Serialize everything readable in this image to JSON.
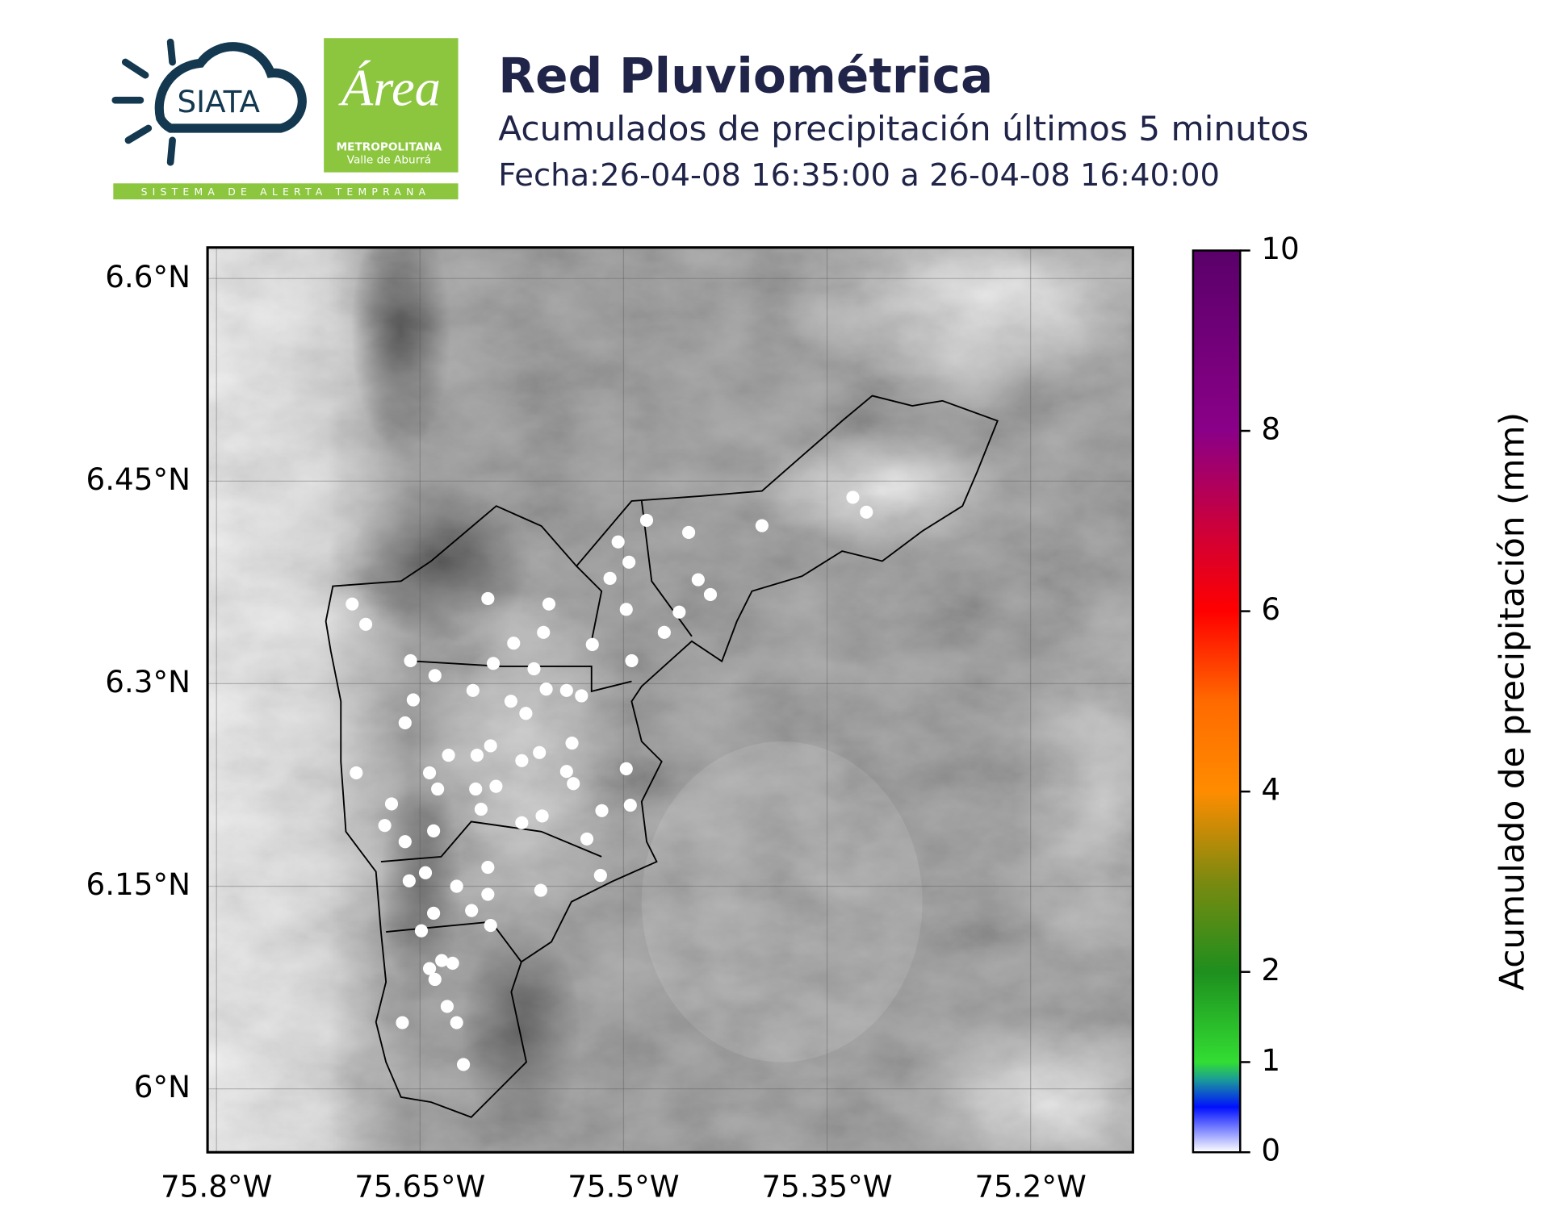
{
  "logos": {
    "siata": "SIATA",
    "area": "Área",
    "area_line1": "METROPOLITANA",
    "area_line2": "Valle de Aburrá",
    "strip": "SISTEMA DE ALERTA TEMPRANA"
  },
  "chart_data": {
    "type": "scatter",
    "title": "Red Pluviométrica",
    "subtitle": "Acumulados de precipitación últimos 5 minutos",
    "date": "Fecha:26-04-08 16:35:00 a 26-04-08 16:40:00",
    "color": "#ffffff",
    "xlim": [
      -75.8066,
      -75.1246
    ],
    "ylim": [
      5.953,
      6.623
    ],
    "xticks": [
      {
        "value": -75.8,
        "label": "75.8°W"
      },
      {
        "value": -75.65,
        "label": "75.65°W"
      },
      {
        "value": -75.5,
        "label": "75.5°W"
      },
      {
        "value": -75.35,
        "label": "75.35°W"
      },
      {
        "value": -75.2,
        "label": "75.2°W"
      }
    ],
    "yticks": [
      {
        "value": 6.6,
        "label": "6.6°N"
      },
      {
        "value": 6.45,
        "label": "6.45°N"
      },
      {
        "value": 6.3,
        "label": "6.3°N"
      },
      {
        "value": 6.15,
        "label": "6.15°N"
      },
      {
        "value": 6.0,
        "label": "6°N"
      }
    ],
    "grid": true,
    "x": [
      -75.7,
      -75.69,
      -75.657,
      -75.639,
      -75.611,
      -75.655,
      -75.661,
      -75.6,
      -75.555,
      -75.504,
      -75.483,
      -75.496,
      -75.51,
      -75.452,
      -75.398,
      -75.331,
      -75.321,
      -75.445,
      -75.436,
      -75.459,
      -75.47,
      -75.498,
      -75.494,
      -75.523,
      -75.559,
      -75.581,
      -75.596,
      -75.566,
      -75.557,
      -75.583,
      -75.572,
      -75.542,
      -75.531,
      -75.562,
      -75.538,
      -75.542,
      -75.575,
      -75.598,
      -75.608,
      -75.594,
      -75.605,
      -75.629,
      -75.643,
      -75.637,
      -75.609,
      -75.671,
      -75.676,
      -75.697,
      -75.661,
      -75.64,
      -75.575,
      -75.56,
      -75.537,
      -75.516,
      -75.495,
      -75.498,
      -75.527,
      -75.517,
      -75.561,
      -75.6,
      -75.6,
      -75.623,
      -75.612,
      -75.598,
      -75.646,
      -75.658,
      -75.64,
      -75.649,
      -75.634,
      -75.626,
      -75.643,
      -75.639,
      -75.663,
      -75.63,
      -75.623,
      -75.618
    ],
    "y": [
      6.359,
      6.344,
      6.317,
      6.306,
      6.295,
      6.288,
      6.271,
      6.363,
      6.359,
      6.405,
      6.421,
      6.39,
      6.378,
      6.412,
      6.417,
      6.438,
      6.427,
      6.377,
      6.366,
      6.353,
      6.338,
      6.355,
      6.317,
      6.329,
      6.338,
      6.33,
      6.315,
      6.311,
      6.296,
      6.287,
      6.278,
      6.295,
      6.291,
      6.249,
      6.256,
      6.235,
      6.243,
      6.254,
      6.247,
      6.224,
      6.207,
      6.247,
      6.234,
      6.222,
      6.222,
      6.211,
      6.195,
      6.234,
      6.183,
      6.191,
      6.197,
      6.202,
      6.226,
      6.206,
      6.21,
      6.237,
      6.185,
      6.158,
      6.147,
      6.164,
      6.144,
      6.15,
      6.132,
      6.121,
      6.16,
      6.154,
      6.13,
      6.117,
      6.095,
      6.093,
      6.089,
      6.081,
      6.049,
      6.061,
      6.049,
      6.018
    ],
    "colorbar": {
      "label": "Acumulado de precipitación (mm)",
      "lim": [
        0,
        10
      ],
      "ticks": [
        0,
        1,
        2,
        4,
        6,
        8,
        10
      ],
      "colorscale": [
        [
          0,
          "#ffffff"
        ],
        [
          0.5,
          "#0010ff"
        ],
        [
          0.8,
          "#1a9a9a"
        ],
        [
          1,
          "#33dd33"
        ],
        [
          2,
          "#1e8f1e"
        ],
        [
          3,
          "#7a8a10"
        ],
        [
          4,
          "#ff8c00"
        ],
        [
          5,
          "#ff6a00"
        ],
        [
          6,
          "#ff0000"
        ],
        [
          7,
          "#c80040"
        ],
        [
          8,
          "#8a0088"
        ],
        [
          10,
          "#5a006a"
        ]
      ]
    }
  }
}
